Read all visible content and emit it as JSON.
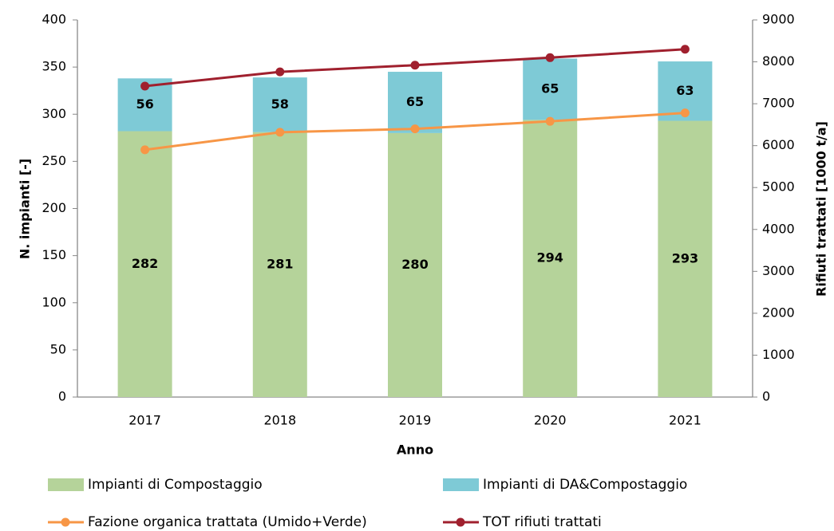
{
  "chart_data": {
    "type": "bar",
    "x_label": "Anno",
    "y_label": "N. impianti [-]",
    "y2_label": "Rifiuti trattati [1000 t/a]",
    "categories": [
      "2017",
      "2018",
      "2019",
      "2020",
      "2021"
    ],
    "series": [
      {
        "name": "Impianti di Compostaggio",
        "type": "bar",
        "color": "#b5d39a",
        "values": [
          282,
          281,
          280,
          294,
          293
        ]
      },
      {
        "name": "Impianti di DA&Compostaggio",
        "type": "bar",
        "color": "#7ecad6",
        "values": [
          56,
          58,
          65,
          65,
          63
        ]
      },
      {
        "name": "Fazione organica trattata (Umido+Verde)",
        "type": "line",
        "axis": "y2",
        "color": "#f79646",
        "values": [
          5900,
          6320,
          6400,
          6580,
          6780
        ]
      },
      {
        "name": "TOT rifiuti trattati",
        "type": "line",
        "axis": "y2",
        "color": "#a0202e",
        "values": [
          7420,
          7760,
          7920,
          8100,
          8300
        ]
      }
    ],
    "stacked": true,
    "ylim": [
      0,
      400
    ],
    "yticks": [
      0,
      50,
      100,
      150,
      200,
      250,
      300,
      350,
      400
    ],
    "y2lim": [
      0,
      9000
    ],
    "y2ticks": [
      0,
      1000,
      2000,
      3000,
      4000,
      5000,
      6000,
      7000,
      8000,
      9000
    ],
    "grid": false,
    "legend": "bottom"
  }
}
